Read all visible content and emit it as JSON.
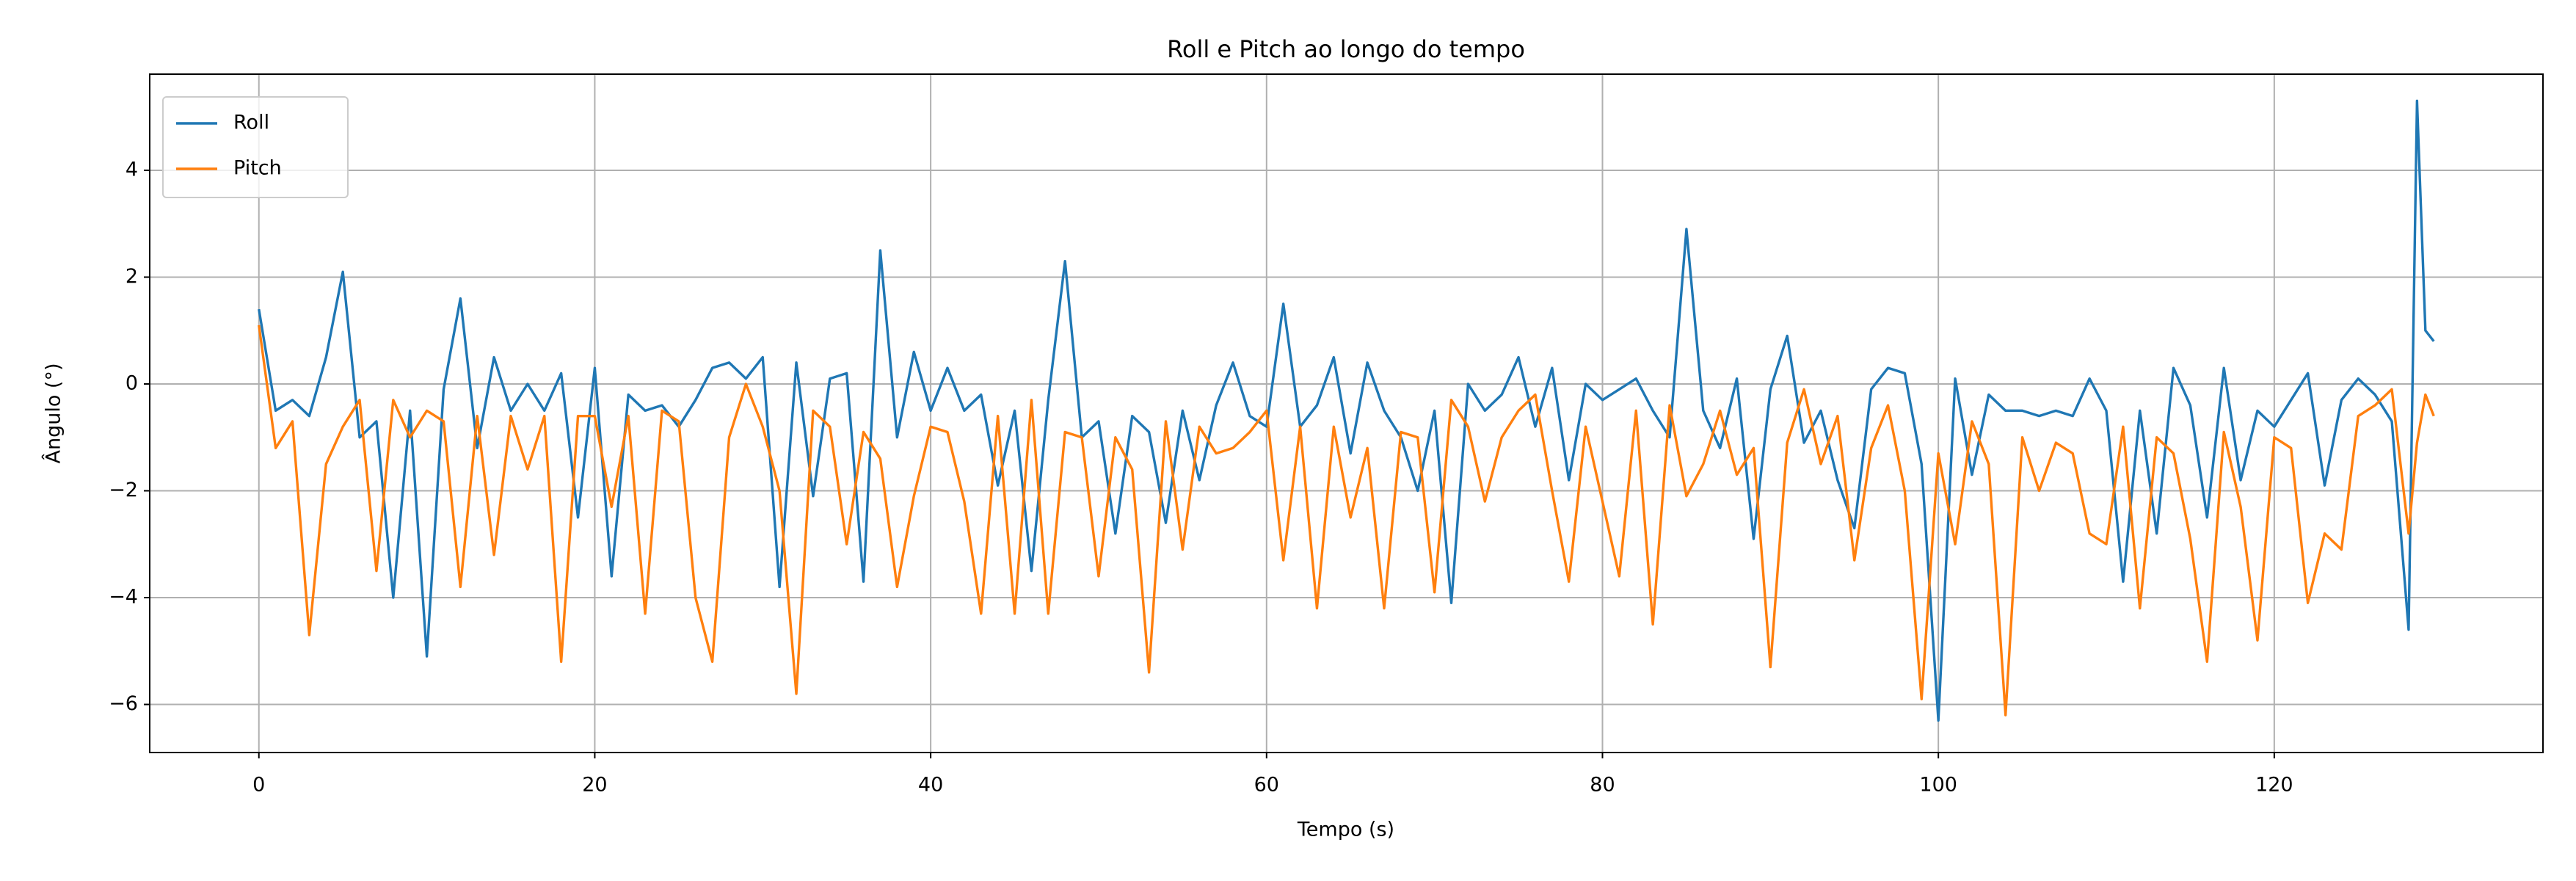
{
  "chart_data": {
    "type": "line",
    "title": "Roll e Pitch ao longo do tempo",
    "x_label": "Tempo (s)",
    "y_label": "Ângulo (°)",
    "x": [
      0,
      1,
      2,
      3,
      4,
      5,
      6,
      7,
      8,
      9,
      10,
      11,
      12,
      13,
      14,
      15,
      16,
      17,
      18,
      19,
      20,
      21,
      22,
      23,
      24,
      25,
      26,
      27,
      28,
      29,
      30,
      31,
      32,
      33,
      34,
      35,
      36,
      37,
      38,
      39,
      40,
      41,
      42,
      43,
      44,
      45,
      46,
      47,
      48,
      49,
      50,
      51,
      52,
      53,
      54,
      55,
      56,
      57,
      58,
      59,
      60,
      61,
      62,
      63,
      64,
      65,
      66,
      67,
      68,
      69,
      70,
      71,
      72,
      73,
      74,
      75,
      76,
      77,
      78,
      79,
      80,
      81,
      82,
      83,
      84,
      85,
      86,
      87,
      88,
      89,
      90,
      91,
      92,
      93,
      94,
      95,
      96,
      97,
      98,
      99,
      100,
      101,
      102,
      103,
      104,
      105,
      106,
      107,
      108,
      109,
      110,
      111,
      112,
      113,
      114,
      115,
      116,
      117,
      118,
      119,
      120,
      121,
      122,
      123,
      124,
      125,
      126,
      127,
      128,
      128.5,
      129,
      129.5
    ],
    "series": [
      {
        "name": "Roll",
        "color": "#1f77b4",
        "values": [
          1.4,
          -0.5,
          -0.3,
          -0.6,
          0.5,
          2.1,
          -1.0,
          -0.7,
          -4.0,
          -0.5,
          -5.1,
          -0.1,
          1.6,
          -1.2,
          0.5,
          -0.5,
          0.0,
          -0.5,
          0.2,
          -2.5,
          0.3,
          -3.6,
          -0.2,
          -0.5,
          -0.4,
          -0.8,
          -0.3,
          0.3,
          0.4,
          0.1,
          0.5,
          -3.8,
          0.4,
          -2.1,
          0.1,
          0.2,
          -3.7,
          2.5,
          -1.0,
          0.6,
          -0.5,
          0.3,
          -0.5,
          -0.2,
          -1.9,
          -0.5,
          -3.5,
          -0.3,
          2.3,
          -1.0,
          -0.7,
          -2.8,
          -0.6,
          -0.9,
          -2.6,
          -0.5,
          -1.8,
          -0.4,
          0.4,
          -0.6,
          -0.8,
          1.5,
          -0.8,
          -0.4,
          0.5,
          -1.3,
          0.4,
          -0.5,
          -1.0,
          -2.0,
          -0.5,
          -4.1,
          0.0,
          -0.5,
          -0.2,
          0.5,
          -0.8,
          0.3,
          -1.8,
          0.0,
          -0.3,
          -0.1,
          0.1,
          -0.5,
          -1.0,
          2.9,
          -0.5,
          -1.2,
          0.1,
          -2.9,
          -0.1,
          0.9,
          -1.1,
          -0.5,
          -1.8,
          -2.7,
          -0.1,
          0.3,
          0.2,
          -1.5,
          -6.3,
          0.1,
          -1.7,
          -0.2,
          -0.5,
          -0.5,
          -0.6,
          -0.5,
          -0.6,
          0.1,
          -0.5,
          -3.7,
          -0.5,
          -2.8,
          0.3,
          -0.4,
          -2.5,
          0.3,
          -1.8,
          -0.5,
          -0.8,
          -0.3,
          0.2,
          -1.9,
          -0.3,
          0.1,
          -0.2,
          -0.7,
          -4.6,
          5.3,
          1.0,
          0.8
        ]
      },
      {
        "name": "Pitch",
        "color": "#ff7f0e",
        "values": [
          1.1,
          -1.2,
          -0.7,
          -4.7,
          -1.5,
          -0.8,
          -0.3,
          -3.5,
          -0.3,
          -1.0,
          -0.5,
          -0.7,
          -3.8,
          -0.6,
          -3.2,
          -0.6,
          -1.6,
          -0.6,
          -5.2,
          -0.6,
          -0.6,
          -2.3,
          -0.6,
          -4.3,
          -0.5,
          -0.7,
          -4.0,
          -5.2,
          -1.0,
          0.0,
          -0.8,
          -2.0,
          -5.8,
          -0.5,
          -0.8,
          -3.0,
          -0.9,
          -1.4,
          -3.8,
          -2.1,
          -0.8,
          -0.9,
          -2.2,
          -4.3,
          -0.6,
          -4.3,
          -0.3,
          -4.3,
          -0.9,
          -1.0,
          -3.6,
          -1.0,
          -1.6,
          -5.4,
          -0.7,
          -3.1,
          -0.8,
          -1.3,
          -1.2,
          -0.9,
          -0.5,
          -3.3,
          -0.8,
          -4.2,
          -0.8,
          -2.5,
          -1.2,
          -4.2,
          -0.9,
          -1.0,
          -3.9,
          -0.3,
          -0.8,
          -2.2,
          -1.0,
          -0.5,
          -0.2,
          -2.0,
          -3.7,
          -0.8,
          -2.2,
          -3.6,
          -0.5,
          -4.5,
          -0.4,
          -2.1,
          -1.5,
          -0.5,
          -1.7,
          -1.2,
          -5.3,
          -1.1,
          -0.1,
          -1.5,
          -0.6,
          -3.3,
          -1.2,
          -0.4,
          -2.0,
          -5.9,
          -1.3,
          -3.0,
          -0.7,
          -1.5,
          -6.2,
          -1.0,
          -2.0,
          -1.1,
          -1.3,
          -2.8,
          -3.0,
          -0.8,
          -4.2,
          -1.0,
          -1.3,
          -2.9,
          -5.2,
          -0.9,
          -2.3,
          -4.8,
          -1.0,
          -1.2,
          -4.1,
          -2.8,
          -3.1,
          -0.6,
          -0.4,
          -0.1,
          -2.8,
          -1.1,
          -0.2,
          -0.6
        ]
      }
    ],
    "xlim": [
      -6.5,
      136
    ],
    "ylim": [
      -6.9,
      5.8
    ],
    "xticks": [
      0,
      20,
      40,
      60,
      80,
      100,
      120
    ],
    "yticks": [
      {
        "value": -6,
        "label": "−6"
      },
      {
        "value": -4,
        "label": "−4"
      },
      {
        "value": -2,
        "label": "−2"
      },
      0,
      2,
      4
    ],
    "grid": true,
    "legend": "upper left"
  }
}
